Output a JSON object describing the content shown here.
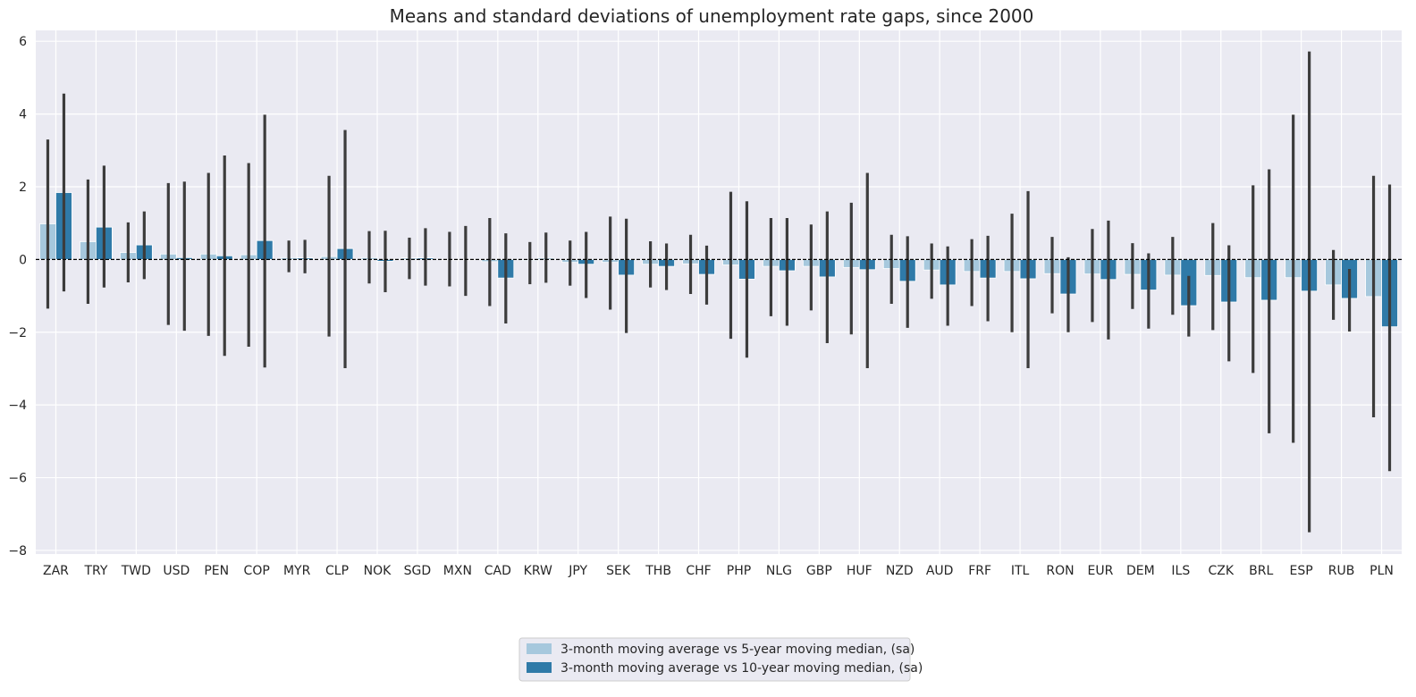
{
  "chart_data": {
    "type": "bar",
    "title": "Means and standard deviations of unemployment rate gaps, since 2000",
    "xlabel": "",
    "ylabel": "",
    "ylim": [
      -8.1,
      6.3
    ],
    "yticks": [
      -8,
      -6,
      -4,
      -2,
      0,
      2,
      4,
      6
    ],
    "grid": true,
    "legend_position": "bottom-center",
    "reference_line": 0,
    "categories": [
      "ZAR",
      "TRY",
      "TWD",
      "USD",
      "PEN",
      "COP",
      "MYR",
      "CLP",
      "NOK",
      "SGD",
      "MXN",
      "CAD",
      "KRW",
      "JPY",
      "SEK",
      "THB",
      "CHF",
      "PHP",
      "NLG",
      "GBP",
      "HUF",
      "NZD",
      "AUD",
      "FRF",
      "ITL",
      "RON",
      "EUR",
      "DEM",
      "ILS",
      "CZK",
      "BRL",
      "ESP",
      "RUB",
      "PLN"
    ],
    "series": [
      {
        "name": "3-month moving average vs 5-year moving median, (sa)",
        "color": "#a6c8dd",
        "values": [
          0.98,
          0.49,
          0.19,
          0.15,
          0.15,
          0.13,
          0.05,
          0.08,
          0.05,
          0.04,
          0.0,
          -0.06,
          -0.03,
          -0.08,
          -0.08,
          -0.13,
          -0.12,
          -0.15,
          -0.19,
          -0.19,
          -0.22,
          -0.25,
          -0.29,
          -0.33,
          -0.33,
          -0.39,
          -0.4,
          -0.41,
          -0.43,
          -0.44,
          -0.5,
          -0.5,
          -0.7,
          -1.02
        ],
        "error_low": [
          -1.35,
          -1.22,
          -0.63,
          -1.8,
          -2.1,
          -2.4,
          -0.35,
          -2.12,
          -0.66,
          -0.54,
          -0.74,
          -1.28,
          -0.68,
          -0.72,
          -1.38,
          -0.77,
          -0.95,
          -2.18,
          -1.56,
          -1.4,
          -2.06,
          -1.22,
          -1.08,
          -1.28,
          -2.0,
          -1.48,
          -1.72,
          -1.36,
          -1.52,
          -1.94,
          -3.12,
          -5.04,
          -1.66,
          -4.34
        ],
        "error_high": [
          3.3,
          2.2,
          1.02,
          2.1,
          2.38,
          2.65,
          0.52,
          2.3,
          0.78,
          0.6,
          0.76,
          1.14,
          0.48,
          0.52,
          1.18,
          0.5,
          0.68,
          1.86,
          1.14,
          0.96,
          1.56,
          0.68,
          0.44,
          0.56,
          1.26,
          0.62,
          0.84,
          0.45,
          0.62,
          1.0,
          2.04,
          3.98,
          0.26,
          2.3
        ]
      },
      {
        "name": "3-month moving average vs 10-year moving median, (sa)",
        "color": "#2f7aa8",
        "values": [
          1.84,
          0.89,
          0.4,
          0.05,
          0.1,
          0.52,
          0.04,
          0.3,
          -0.05,
          0.04,
          0.0,
          -0.51,
          0.03,
          -0.13,
          -0.43,
          -0.19,
          -0.41,
          -0.54,
          -0.31,
          -0.48,
          -0.28,
          -0.6,
          -0.7,
          -0.51,
          -0.53,
          -0.95,
          -0.55,
          -0.84,
          -1.27,
          -1.17,
          -1.12,
          -0.87,
          -1.07,
          -1.85
        ],
        "error_low": [
          -0.88,
          -0.77,
          -0.54,
          -1.96,
          -2.65,
          -2.97,
          -0.38,
          -2.99,
          -0.9,
          -0.72,
          -1.0,
          -1.76,
          -0.64,
          -1.06,
          -2.02,
          -0.84,
          -1.24,
          -2.7,
          -1.82,
          -2.3,
          -2.99,
          -1.88,
          -1.82,
          -1.7,
          -2.99,
          -2.0,
          -2.2,
          -1.9,
          -2.12,
          -2.8,
          -4.78,
          -7.5,
          -1.98,
          -5.82
        ],
        "error_high": [
          4.56,
          2.58,
          1.32,
          2.14,
          2.86,
          3.98,
          0.54,
          3.56,
          0.79,
          0.86,
          0.92,
          0.72,
          0.74,
          0.76,
          1.12,
          0.44,
          0.38,
          1.6,
          1.14,
          1.32,
          2.38,
          0.64,
          0.36,
          0.65,
          1.88,
          0.06,
          1.07,
          0.17,
          -0.45,
          0.39,
          2.48,
          5.72,
          -0.26,
          2.06
        ]
      }
    ]
  }
}
